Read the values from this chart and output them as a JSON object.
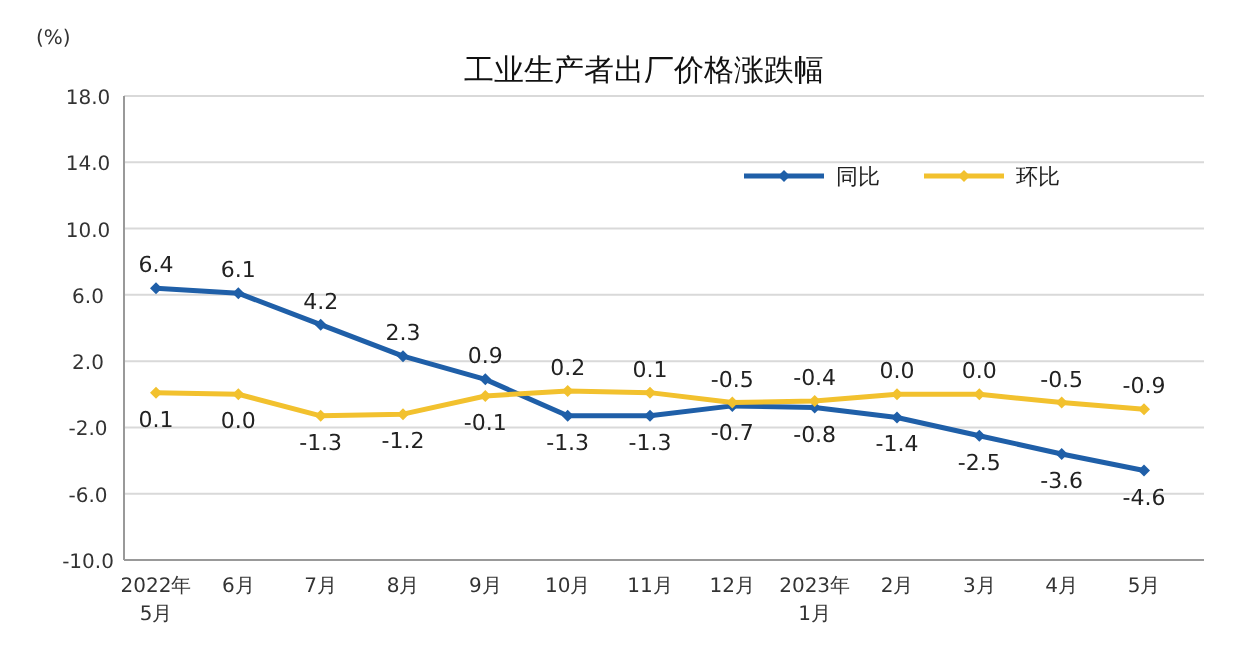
{
  "chart_data": {
    "type": "line",
    "title": "工业生产者出厂价格涨跌幅",
    "ylabel": "(%)",
    "categories": [
      "2022年\n5月",
      "6月",
      "7月",
      "8月",
      "9月",
      "10月",
      "11月",
      "12月",
      "2023年\n1月",
      "2月",
      "3月",
      "4月",
      "5月"
    ],
    "series": [
      {
        "name": "同比",
        "color": "#1f5fa8",
        "values": [
          6.4,
          6.1,
          4.2,
          2.3,
          0.9,
          -1.3,
          -1.3,
          -0.7,
          -0.8,
          -1.4,
          -2.5,
          -3.6,
          -4.6
        ],
        "value_labels": [
          "6.4",
          "6.1",
          "4.2",
          "2.3",
          "0.9",
          "-1.3",
          "-1.3",
          "-0.7",
          "-0.8",
          "-1.4",
          "-2.5",
          "-3.6",
          "-4.6"
        ]
      },
      {
        "name": "环比",
        "color": "#f2c12e",
        "values": [
          0.1,
          0,
          -1.3,
          -1.2,
          -0.1,
          0.2,
          0.1,
          -0.5,
          -0.4,
          0,
          0,
          -0.5,
          -0.9
        ],
        "value_labels": [
          "0.1",
          "0.0",
          "-1.3",
          "-1.2",
          "-0.1",
          "0.2",
          "0.1",
          "-0.5",
          "-0.4",
          "0.0",
          "0.0",
          "-0.5",
          "-0.9"
        ]
      }
    ],
    "ylim": [
      -10,
      18
    ],
    "yticks": [
      {
        "value": -10,
        "label": "-10.0"
      },
      {
        "value": -6,
        "label": "-6.0"
      },
      {
        "value": -2,
        "label": "-2.0"
      },
      {
        "value": 2,
        "label": "2.0"
      },
      {
        "value": 6,
        "label": "6.0"
      },
      {
        "value": 10,
        "label": "10.0"
      },
      {
        "value": 14,
        "label": "14.0"
      },
      {
        "value": 18,
        "label": "18.0"
      }
    ],
    "grid": "y",
    "legend": "top right",
    "marker": "diamond",
    "line_style": "solid"
  }
}
